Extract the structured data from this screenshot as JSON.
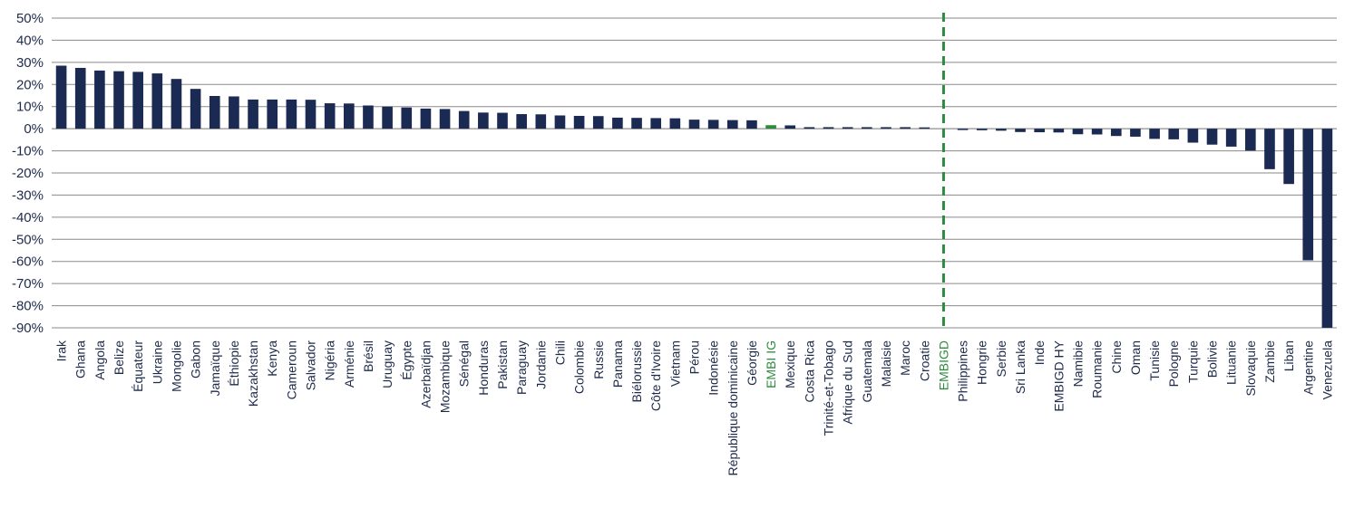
{
  "colors": {
    "bar": "#1b2a52",
    "highlight": "#2e8b3e",
    "grid": "#8a8a8a",
    "text": "#1e2a4a"
  },
  "chart_data": {
    "type": "bar",
    "title": "",
    "xlabel": "",
    "ylabel": "",
    "ylim": [
      -90,
      50
    ],
    "yticks": [
      50,
      40,
      30,
      20,
      10,
      0,
      -10,
      -20,
      -30,
      -40,
      -50,
      -60,
      -70,
      -80,
      -90
    ],
    "ytick_labels": [
      "50%",
      "40%",
      "30%",
      "20%",
      "10%",
      "0%",
      "-10%",
      "-20%",
      "-30%",
      "-40%",
      "-50%",
      "-60%",
      "-70%",
      "-80%",
      "-90%"
    ],
    "grid": true,
    "categories": [
      "Irak",
      "Ghana",
      "Angola",
      "Belize",
      "Équateur",
      "Ukraine",
      "Mongolie",
      "Gabon",
      "Jamaïque",
      "Éthiopie",
      "Kazakhstan",
      "Kenya",
      "Cameroun",
      "Salvador",
      "Nigéria",
      "Arménie",
      "Brésil",
      "Uruguay",
      "Égypte",
      "Azerbaïdjan",
      "Mozambique",
      "Sénégal",
      "Honduras",
      "Pakistan",
      "Paraguay",
      "Jordanie",
      "Chili",
      "Colombie",
      "Russie",
      "Panama",
      "Biélorussie",
      "Côte d'Ivoire",
      "Vietnam",
      "Pérou",
      "Indonésie",
      "République dominicaine",
      "Géorgie",
      "EMBI IG",
      "Mexique",
      "Costa Rica",
      "Trinité-et-Tobago",
      "Afrique du Sud",
      "Guatemala",
      "Malaisie",
      "Maroc",
      "Croatie",
      "EMBIGD",
      "Philippines",
      "Hongrie",
      "Serbie",
      "Sri Lanka",
      "Inde",
      "EMBIGD HY",
      "Namibie",
      "Roumanie",
      "Chine",
      "Oman",
      "Tunisie",
      "Pologne",
      "Turquie",
      "Bolivie",
      "Lituanie",
      "Slovaquie",
      "Zambie",
      "Liban",
      "Argentine",
      "Venezuela"
    ],
    "values": [
      28.5,
      27.5,
      26.3,
      26,
      25.7,
      25,
      22.5,
      18,
      14.8,
      14.6,
      13.2,
      13.2,
      13.2,
      13.1,
      11.5,
      11.4,
      10.5,
      10,
      9.6,
      9.1,
      8.9,
      8,
      7.3,
      7.2,
      6.6,
      6.5,
      6,
      5.8,
      5.7,
      5,
      4.9,
      4.8,
      4.7,
      4.1,
      4,
      3.9,
      3.8,
      1.6,
      1.5,
      0.7,
      0.7,
      0.7,
      0.7,
      0.7,
      0.7,
      0.6,
      0,
      -0.6,
      -0.7,
      -0.9,
      -1.5,
      -1.6,
      -1.7,
      -2.5,
      -2.6,
      -3.3,
      -3.6,
      -4.6,
      -4.8,
      -6.3,
      -7.2,
      -8.1,
      -9.9,
      -18.3,
      -25,
      -59.5,
      -90
    ],
    "highlight_categories": [
      "EMBI IG",
      "EMBIGD"
    ],
    "reference_line_category": "EMBIGD"
  }
}
